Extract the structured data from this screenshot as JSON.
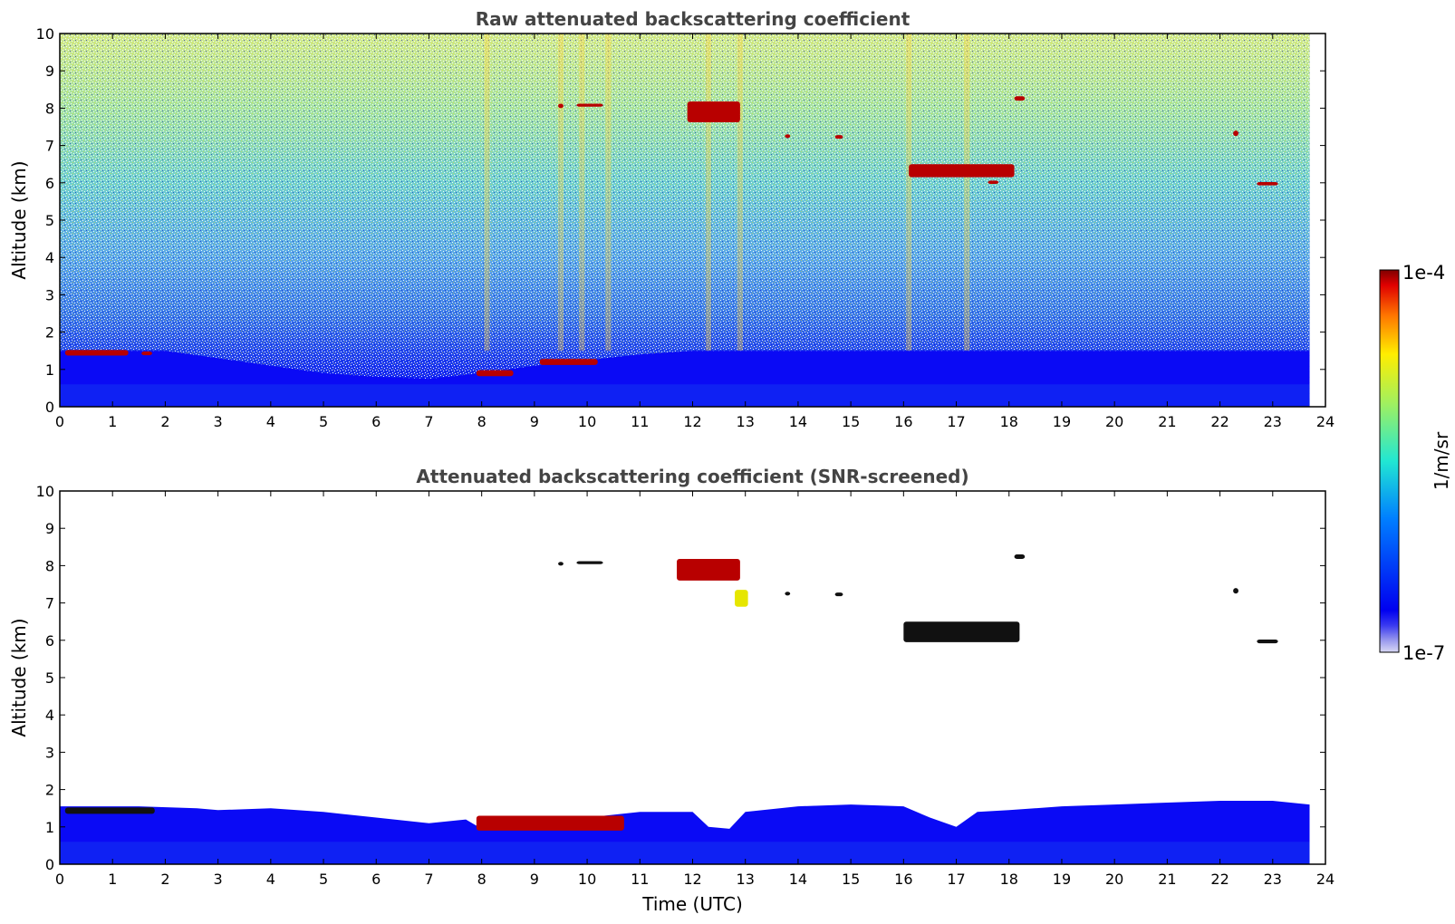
{
  "chart_data": [
    {
      "type": "heatmap",
      "title": "Raw attenuated backscattering coefficient",
      "xlabel": "",
      "ylabel": "Altitude (km)",
      "xlim": [
        0,
        24
      ],
      "ylim": [
        0,
        10
      ],
      "x_ticks": [
        "0",
        "1",
        "2",
        "3",
        "4",
        "5",
        "6",
        "7",
        "8",
        "9",
        "10",
        "11",
        "12",
        "13",
        "14",
        "15",
        "16",
        "17",
        "18",
        "19",
        "20",
        "21",
        "22",
        "23",
        "24"
      ],
      "y_ticks": [
        "0",
        "1",
        "2",
        "3",
        "4",
        "5",
        "6",
        "7",
        "8",
        "9",
        "10"
      ],
      "data_x_end": 23.7,
      "boundary_layer_top_km": [
        [
          0,
          1.5
        ],
        [
          2,
          1.5
        ],
        [
          3,
          1.3
        ],
        [
          4,
          1.1
        ],
        [
          5,
          0.9
        ],
        [
          6,
          0.8
        ],
        [
          7,
          0.75
        ],
        [
          8,
          0.9
        ],
        [
          9,
          1.1
        ],
        [
          10,
          1.25
        ],
        [
          11,
          1.4
        ],
        [
          12,
          1.5
        ],
        [
          13,
          1.5
        ],
        [
          14,
          1.5
        ],
        [
          15,
          1.5
        ],
        [
          16,
          1.5
        ],
        [
          17,
          1.5
        ],
        [
          18,
          1.5
        ],
        [
          19,
          1.5
        ],
        [
          20,
          1.5
        ],
        [
          21,
          1.5
        ],
        [
          22,
          1.5
        ],
        [
          23,
          1.5
        ],
        [
          23.7,
          1.5
        ]
      ],
      "enhanced_columns_utc": [
        8.1,
        9.5,
        9.9,
        10.4,
        12.3,
        12.9,
        16.1,
        17.2
      ],
      "features": [
        {
          "x0": 0.1,
          "x1": 1.3,
          "y0": 1.37,
          "y1": 1.52,
          "level": "high"
        },
        {
          "x0": 1.55,
          "x1": 1.75,
          "y0": 1.38,
          "y1": 1.48,
          "level": "high"
        },
        {
          "x0": 7.9,
          "x1": 8.6,
          "y0": 0.82,
          "y1": 0.98,
          "level": "high"
        },
        {
          "x0": 9.1,
          "x1": 10.2,
          "y0": 1.12,
          "y1": 1.28,
          "level": "high"
        },
        {
          "x0": 9.45,
          "x1": 9.55,
          "y0": 8.0,
          "y1": 8.12,
          "level": "high"
        },
        {
          "x0": 9.8,
          "x1": 10.3,
          "y0": 8.04,
          "y1": 8.12,
          "level": "high"
        },
        {
          "x0": 11.9,
          "x1": 12.9,
          "y0": 7.62,
          "y1": 8.18,
          "level": "high"
        },
        {
          "x0": 13.75,
          "x1": 13.85,
          "y0": 7.2,
          "y1": 7.3,
          "level": "high"
        },
        {
          "x0": 14.7,
          "x1": 14.85,
          "y0": 7.18,
          "y1": 7.28,
          "level": "high"
        },
        {
          "x0": 16.1,
          "x1": 18.1,
          "y0": 6.15,
          "y1": 6.5,
          "level": "high"
        },
        {
          "x0": 17.6,
          "x1": 17.8,
          "y0": 5.97,
          "y1": 6.06,
          "level": "high"
        },
        {
          "x0": 18.1,
          "x1": 18.3,
          "y0": 8.2,
          "y1": 8.32,
          "level": "high"
        },
        {
          "x0": 22.25,
          "x1": 22.35,
          "y0": 7.25,
          "y1": 7.4,
          "level": "high"
        },
        {
          "x0": 22.7,
          "x1": 23.1,
          "y0": 5.93,
          "y1": 6.02,
          "level": "high"
        }
      ]
    },
    {
      "type": "heatmap",
      "title": "Attenuated backscattering coefficient (SNR-screened)",
      "xlabel": "Time (UTC)",
      "ylabel": "Altitude (km)",
      "xlim": [
        0,
        24
      ],
      "ylim": [
        0,
        10
      ],
      "x_ticks": [
        "0",
        "1",
        "2",
        "3",
        "4",
        "5",
        "6",
        "7",
        "8",
        "9",
        "10",
        "11",
        "12",
        "13",
        "14",
        "15",
        "16",
        "17",
        "18",
        "19",
        "20",
        "21",
        "22",
        "23",
        "24"
      ],
      "y_ticks": [
        "0",
        "1",
        "2",
        "3",
        "4",
        "5",
        "6",
        "7",
        "8",
        "9",
        "10"
      ],
      "data_x_end": 23.7,
      "boundary_layer_top_km": [
        [
          0,
          1.55
        ],
        [
          1.5,
          1.55
        ],
        [
          2.6,
          1.5
        ],
        [
          3,
          1.45
        ],
        [
          4,
          1.5
        ],
        [
          5,
          1.4
        ],
        [
          6,
          1.25
        ],
        [
          7,
          1.1
        ],
        [
          7.7,
          1.2
        ],
        [
          8,
          0.95
        ],
        [
          9,
          1.1
        ],
        [
          10,
          1.25
        ],
        [
          11,
          1.4
        ],
        [
          12,
          1.4
        ],
        [
          12.3,
          1.0
        ],
        [
          12.7,
          0.95
        ],
        [
          13,
          1.4
        ],
        [
          14,
          1.55
        ],
        [
          15,
          1.6
        ],
        [
          16,
          1.55
        ],
        [
          16.5,
          1.25
        ],
        [
          17,
          1.0
        ],
        [
          17.4,
          1.4
        ],
        [
          18,
          1.45
        ],
        [
          19,
          1.55
        ],
        [
          20,
          1.6
        ],
        [
          21,
          1.65
        ],
        [
          22,
          1.7
        ],
        [
          23,
          1.7
        ],
        [
          23.7,
          1.6
        ]
      ],
      "features": [
        {
          "x0": 0.1,
          "x1": 1.8,
          "y0": 1.35,
          "y1": 1.52,
          "level": "saturated"
        },
        {
          "x0": 7.9,
          "x1": 10.7,
          "y0": 0.9,
          "y1": 1.3,
          "level": "high"
        },
        {
          "x0": 9.45,
          "x1": 9.55,
          "y0": 8.0,
          "y1": 8.1,
          "level": "saturated"
        },
        {
          "x0": 9.8,
          "x1": 10.3,
          "y0": 8.04,
          "y1": 8.12,
          "level": "saturated"
        },
        {
          "x0": 11.7,
          "x1": 12.9,
          "y0": 7.6,
          "y1": 8.18,
          "level": "high"
        },
        {
          "x0": 12.8,
          "x1": 13.05,
          "y0": 6.9,
          "y1": 7.35,
          "level": "medium"
        },
        {
          "x0": 13.75,
          "x1": 13.85,
          "y0": 7.2,
          "y1": 7.3,
          "level": "saturated"
        },
        {
          "x0": 14.7,
          "x1": 14.85,
          "y0": 7.18,
          "y1": 7.28,
          "level": "saturated"
        },
        {
          "x0": 16.0,
          "x1": 18.2,
          "y0": 5.95,
          "y1": 6.5,
          "level": "saturated"
        },
        {
          "x0": 18.1,
          "x1": 18.3,
          "y0": 8.18,
          "y1": 8.3,
          "level": "saturated"
        },
        {
          "x0": 22.25,
          "x1": 22.35,
          "y0": 7.25,
          "y1": 7.4,
          "level": "saturated"
        },
        {
          "x0": 22.7,
          "x1": 23.1,
          "y0": 5.92,
          "y1": 6.02,
          "level": "saturated"
        }
      ]
    }
  ],
  "colorbar": {
    "label": "1/m/sr",
    "max_label": "1e-4",
    "min_label": "1e-7",
    "scale": "log",
    "colormap": "jet",
    "range": [
      1e-07,
      0.0001
    ]
  }
}
